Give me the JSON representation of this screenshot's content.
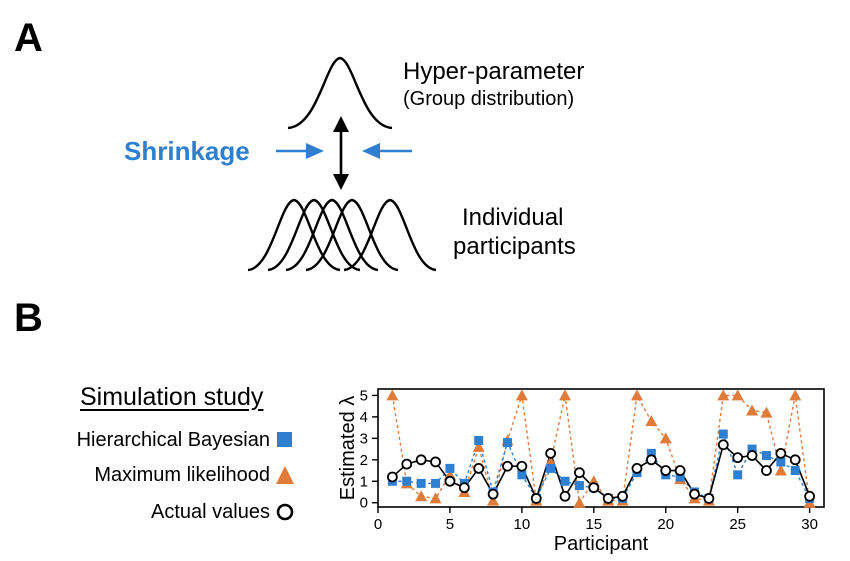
{
  "panel_a": {
    "letter": "A",
    "hyper_line1": "Hyper-parameter",
    "hyper_line2": "(Group distribution)",
    "shrinkage_label": "Shrinkage",
    "individual_line1": "Individual",
    "individual_line2": "participants",
    "accent_color": "#2f7fd0"
  },
  "panel_b": {
    "letter": "B",
    "legend_title": "Simulation study",
    "legend": [
      {
        "label": "Hierarchical Bayesian",
        "marker": "square",
        "color": "#2f7fd0"
      },
      {
        "label": "Maximum likelihood",
        "marker": "triangle",
        "color": "#e07b3a"
      },
      {
        "label": "Actual values",
        "marker": "circle",
        "color": "#000000"
      }
    ]
  },
  "chart_data": {
    "type": "line",
    "xlabel": "Participant",
    "ylabel": "Estimated λ",
    "xlim": [
      0,
      31
    ],
    "ylim": [
      -0.2,
      5.3
    ],
    "xticks": [
      0,
      5,
      10,
      15,
      20,
      25,
      30
    ],
    "yticks": [
      0,
      1,
      2,
      3,
      4,
      5
    ],
    "x": [
      1,
      2,
      3,
      4,
      5,
      6,
      7,
      8,
      9,
      10,
      11,
      12,
      13,
      14,
      15,
      16,
      17,
      18,
      19,
      20,
      21,
      22,
      23,
      24,
      25,
      26,
      27,
      28,
      29,
      30
    ],
    "series": [
      {
        "name": "Hierarchical Bayesian",
        "marker": "square",
        "color": "#2f7fd0",
        "line": "dashed",
        "values": [
          1.0,
          1.0,
          0.9,
          0.9,
          1.6,
          0.9,
          2.9,
          0.5,
          2.8,
          1.3,
          0.2,
          1.6,
          1.0,
          0.8,
          0.7,
          0.2,
          0.2,
          1.4,
          2.3,
          1.3,
          1.2,
          0.5,
          0.2,
          3.2,
          1.3,
          2.5,
          2.2,
          1.9,
          1.5,
          0.2
        ]
      },
      {
        "name": "Maximum likelihood",
        "marker": "triangle",
        "color": "#e07b3a",
        "line": "dashed",
        "values": [
          5.0,
          0.9,
          0.3,
          0.2,
          1.3,
          0.5,
          2.6,
          0.1,
          2.9,
          5.0,
          0.1,
          1.9,
          5.0,
          0.0,
          1.0,
          0.1,
          0.1,
          5.0,
          3.8,
          3.0,
          1.1,
          0.2,
          0.1,
          5.0,
          5.0,
          4.3,
          4.2,
          1.5,
          5.0,
          0.0
        ]
      },
      {
        "name": "Actual values",
        "marker": "circle",
        "color": "#000000",
        "line": "solid",
        "values": [
          1.2,
          1.8,
          2.0,
          1.9,
          1.0,
          0.7,
          1.6,
          0.4,
          1.7,
          1.7,
          0.2,
          2.3,
          0.3,
          1.4,
          0.7,
          0.2,
          0.3,
          1.6,
          2.0,
          1.5,
          1.5,
          0.4,
          0.2,
          2.7,
          2.1,
          2.2,
          1.5,
          2.3,
          2.0,
          0.3
        ]
      }
    ],
    "grid": false
  }
}
